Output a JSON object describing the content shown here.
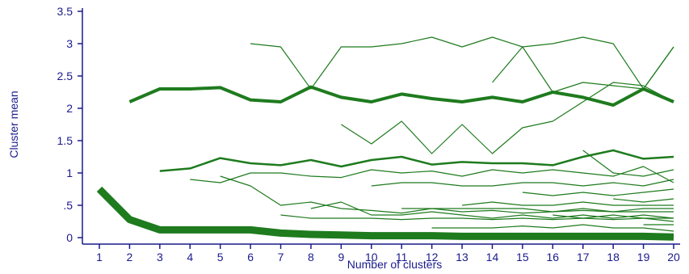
{
  "chart_data": {
    "type": "line",
    "title": "",
    "xlabel": "Number of clusters",
    "ylabel": "Cluster mean",
    "xlim": [
      1,
      20
    ],
    "ylim": [
      0,
      3.5
    ],
    "x_ticks": [
      "1",
      "2",
      "3",
      "4",
      "5",
      "6",
      "7",
      "8",
      "9",
      "10",
      "11",
      "12",
      "13",
      "14",
      "15",
      "16",
      "17",
      "18",
      "19",
      "20"
    ],
    "y_ticks": [
      {
        "value": 0,
        "label": "0"
      },
      {
        "value": 0.5,
        "label": ".5"
      },
      {
        "value": 1,
        "label": "1"
      },
      {
        "value": 1.5,
        "label": "1.5"
      },
      {
        "value": 2,
        "label": "2"
      },
      {
        "value": 2.5,
        "label": "2.5"
      },
      {
        "value": 3,
        "label": "3"
      },
      {
        "value": 3.5,
        "label": "3.5"
      }
    ],
    "grid": false,
    "colors": {
      "line": "#1e7b1e",
      "axis": "#1a1a8c"
    },
    "series": [
      {
        "width": 9,
        "values": [
          0.75,
          0.28,
          0.12,
          0.12,
          0.12,
          0.12,
          0.07,
          0.05,
          0.04,
          0.03,
          0.03,
          0.03,
          0.02,
          0.02,
          0.02,
          0.02,
          0.02,
          0.02,
          0.02,
          0.01
        ]
      },
      {
        "width": 4,
        "values": [
          null,
          2.1,
          2.3,
          2.3,
          2.32,
          2.13,
          2.1,
          2.33,
          2.17,
          2.1,
          2.22,
          2.15,
          2.1,
          2.17,
          2.1,
          2.25,
          2.17,
          2.05,
          2.3,
          2.1
        ]
      },
      {
        "width": 2.5,
        "values": [
          null,
          null,
          1.03,
          1.07,
          1.23,
          1.15,
          1.12,
          1.2,
          1.1,
          1.2,
          1.25,
          1.13,
          1.17,
          1.15,
          1.15,
          1.12,
          1.25,
          1.35,
          1.22,
          1.25
        ]
      },
      {
        "width": 1.2,
        "values": [
          null,
          null,
          null,
          0.9,
          0.85,
          1.0,
          1.0,
          0.95,
          0.93,
          1.05,
          1.0,
          1.03,
          0.95,
          1.05,
          1.0,
          1.05,
          1.0,
          0.95,
          1.1,
          0.85
        ]
      },
      {
        "width": 1.2,
        "values": [
          null,
          null,
          null,
          null,
          0.95,
          0.8,
          0.5,
          0.55,
          0.45,
          0.42,
          0.38,
          0.45,
          0.4,
          0.42,
          0.38,
          0.4,
          0.42,
          0.4,
          0.45,
          0.45
        ]
      },
      {
        "width": 1.2,
        "values": [
          null,
          null,
          null,
          null,
          null,
          3.0,
          2.95,
          2.3,
          2.95,
          2.95,
          3.0,
          3.1,
          2.95,
          3.1,
          2.95,
          3.0,
          3.1,
          3.0,
          2.3,
          2.95
        ]
      },
      {
        "width": 1.2,
        "values": [
          null,
          null,
          null,
          null,
          null,
          null,
          0.35,
          0.3,
          0.3,
          0.3,
          0.28,
          0.3,
          0.3,
          0.28,
          0.3,
          0.28,
          0.3,
          0.28,
          0.3,
          0.3
        ]
      },
      {
        "width": 1.2,
        "values": [
          null,
          null,
          null,
          null,
          null,
          null,
          null,
          0.45,
          0.55,
          0.35,
          0.35,
          0.4,
          0.35,
          0.3,
          0.35,
          0.3,
          0.35,
          0.3,
          0.35,
          0.3
        ]
      },
      {
        "width": 1.2,
        "values": [
          null,
          null,
          null,
          null,
          null,
          null,
          null,
          null,
          1.75,
          1.45,
          1.8,
          1.3,
          1.75,
          1.3,
          1.7,
          1.8,
          2.1,
          2.4,
          2.35,
          2.1
        ]
      },
      {
        "width": 1.2,
        "values": [
          null,
          null,
          null,
          null,
          null,
          null,
          null,
          null,
          null,
          0.8,
          0.85,
          0.85,
          0.8,
          0.8,
          0.85,
          0.85,
          0.8,
          0.85,
          0.8,
          0.9
        ]
      },
      {
        "width": 1.2,
        "values": [
          null,
          null,
          null,
          null,
          null,
          null,
          null,
          null,
          null,
          null,
          0.45,
          0.45,
          0.45,
          0.45,
          0.45,
          0.4,
          0.45,
          0.4,
          0.4,
          0.4
        ]
      },
      {
        "width": 1.2,
        "values": [
          null,
          null,
          null,
          null,
          null,
          null,
          null,
          null,
          null,
          null,
          null,
          0.15,
          0.15,
          0.15,
          0.18,
          0.15,
          0.2,
          0.15,
          0.15,
          0.1
        ]
      },
      {
        "width": 1.2,
        "values": [
          null,
          null,
          null,
          null,
          null,
          null,
          null,
          null,
          null,
          null,
          null,
          null,
          0.5,
          0.55,
          0.5,
          0.5,
          0.55,
          0.5,
          0.5,
          0.5
        ]
      },
      {
        "width": 1.2,
        "values": [
          null,
          null,
          null,
          null,
          null,
          null,
          null,
          null,
          null,
          null,
          null,
          null,
          null,
          2.4,
          2.95,
          2.25,
          2.4,
          2.35,
          2.3,
          2.95
        ]
      },
      {
        "width": 1.2,
        "values": [
          null,
          null,
          null,
          null,
          null,
          null,
          null,
          null,
          null,
          null,
          null,
          null,
          null,
          null,
          0.7,
          0.65,
          0.7,
          0.65,
          0.7,
          0.75
        ]
      },
      {
        "width": 1.2,
        "values": [
          null,
          null,
          null,
          null,
          null,
          null,
          null,
          null,
          null,
          null,
          null,
          null,
          null,
          null,
          null,
          0.35,
          0.3,
          0.35,
          0.3,
          0.25
        ]
      },
      {
        "width": 1.2,
        "values": [
          null,
          null,
          null,
          null,
          null,
          null,
          null,
          null,
          null,
          null,
          null,
          null,
          null,
          null,
          null,
          null,
          1.35,
          1.0,
          0.95,
          1.05
        ]
      },
      {
        "width": 1.2,
        "values": [
          null,
          null,
          null,
          null,
          null,
          null,
          null,
          null,
          null,
          null,
          null,
          null,
          null,
          null,
          null,
          null,
          null,
          0.6,
          0.55,
          0.6
        ]
      },
      {
        "width": 1.2,
        "values": [
          null,
          null,
          null,
          null,
          null,
          null,
          null,
          null,
          null,
          null,
          null,
          null,
          null,
          null,
          null,
          null,
          null,
          null,
          0.2,
          0.2
        ]
      },
      {
        "width": 1.2,
        "values": [
          null,
          null,
          null,
          null,
          null,
          null,
          null,
          null,
          null,
          null,
          null,
          null,
          null,
          null,
          null,
          null,
          null,
          null,
          null,
          0.15
        ]
      }
    ]
  }
}
